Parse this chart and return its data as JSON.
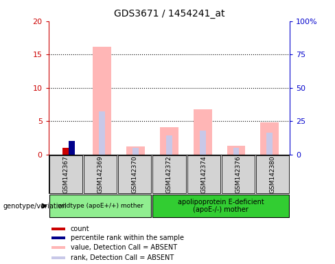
{
  "title": "GDS3671 / 1454241_at",
  "samples": [
    "GSM142367",
    "GSM142369",
    "GSM142370",
    "GSM142372",
    "GSM142374",
    "GSM142376",
    "GSM142380"
  ],
  "group_label": "genotype/variation",
  "count_values": [
    1.0,
    0,
    0,
    0,
    0,
    0,
    0
  ],
  "percentile_values": [
    2.0,
    0,
    0,
    0,
    0,
    0,
    0
  ],
  "pink_bar_values": [
    0,
    16.2,
    1.2,
    4.1,
    6.8,
    1.3,
    4.8
  ],
  "blue_bar_values": [
    0,
    6.5,
    1.0,
    2.8,
    3.6,
    1.0,
    3.3
  ],
  "ylim_left": [
    0,
    20
  ],
  "ylim_right": [
    0,
    100
  ],
  "yticks_left": [
    0,
    5,
    10,
    15,
    20
  ],
  "yticks_right": [
    0,
    25,
    50,
    75,
    100
  ],
  "yticklabels_right": [
    "0",
    "25",
    "50",
    "75",
    "100%"
  ],
  "left_axis_color": "#cc0000",
  "right_axis_color": "#0000cc",
  "bar_width": 0.55,
  "narrow_bar_width": 0.18,
  "group1_color": "#90ee90",
  "group2_color": "#32cd32",
  "group1_label": "wildtype (apoE+/+) mother",
  "group2_label": "apolipoprotein E-deficient\n(apoE-/-) mother",
  "group1_n": 3,
  "group2_n": 4,
  "legend_items": [
    {
      "color": "#cc0000",
      "label": "count"
    },
    {
      "color": "#00008b",
      "label": "percentile rank within the sample"
    },
    {
      "color": "#ffb6b6",
      "label": "value, Detection Call = ABSENT"
    },
    {
      "color": "#c8c8e8",
      "label": "rank, Detection Call = ABSENT"
    }
  ],
  "sample_box_color": "#d3d3d3",
  "bar_area_bg": "#ffffff"
}
